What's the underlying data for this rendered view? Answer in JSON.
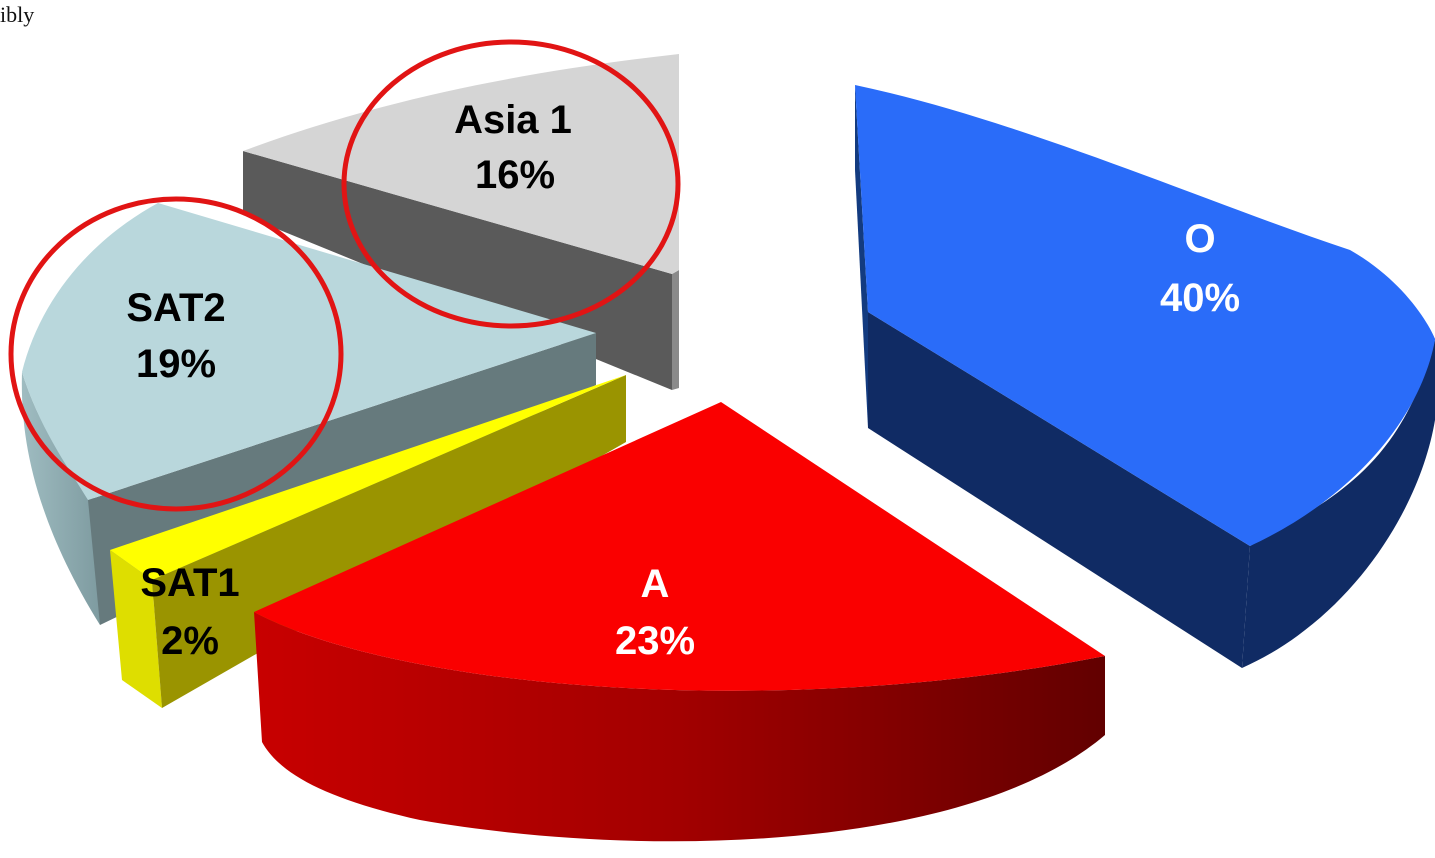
{
  "corner_text": "ibly",
  "colors": {
    "O": "#2a6cf9",
    "A": "#fa0000",
    "SAT1": "#ffff00",
    "SAT2": "#b9d7dc",
    "Asia 1": "#d5d5d5",
    "highlight_circle": "#e11414"
  },
  "chart_data": {
    "type": "pie",
    "style": "3d-exploded",
    "title": "",
    "slices": [
      {
        "name": "O",
        "value": 40,
        "label": "O",
        "pct_label": "40%",
        "label_color": "#ffffff"
      },
      {
        "name": "A",
        "value": 23,
        "label": "A",
        "pct_label": "23%",
        "label_color": "#ffffff"
      },
      {
        "name": "SAT1",
        "value": 2,
        "label": "SAT1",
        "pct_label": "2%",
        "label_color": "#000000"
      },
      {
        "name": "SAT2",
        "value": 19,
        "label": "SAT2",
        "pct_label": "19%",
        "label_color": "#000000"
      },
      {
        "name": "Asia 1",
        "value": 16,
        "label": "Asia 1",
        "pct_label": "16%",
        "label_color": "#000000"
      }
    ],
    "highlighted": [
      "SAT2",
      "Asia 1"
    ]
  }
}
